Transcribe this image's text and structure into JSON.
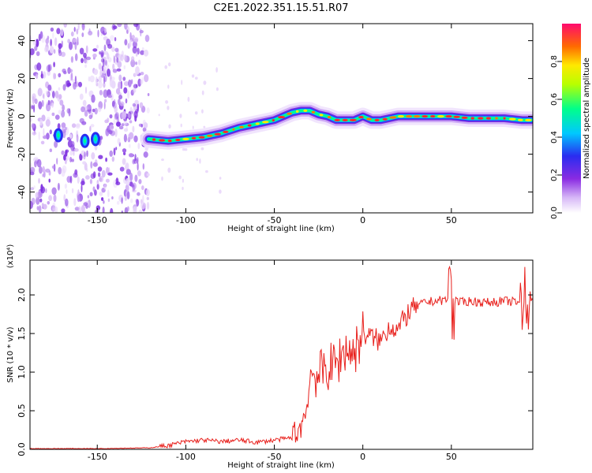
{
  "title": "C2E1.2022.351.15.51.R07",
  "colors": {
    "snr_line": "#e8201c",
    "spectral": [
      "#f6eefe",
      "#c79af5",
      "#8a2be2",
      "#2a2cf0",
      "#00c8ff",
      "#00ff8a",
      "#ffe800",
      "#ff6a00",
      "#ff0033"
    ]
  },
  "chart_data": [
    {
      "type": "heatmap",
      "xlabel": "Height of straight line (km)",
      "ylabel": "Frequency (Hz)",
      "xlim": [
        -188,
        96
      ],
      "ylim": [
        -51,
        49
      ],
      "x_ticks": [
        -150,
        -100,
        -50,
        0,
        50
      ],
      "y_ticks": [
        -40,
        -20,
        0,
        20,
        40
      ],
      "colorbar": {
        "label": "Normalized spectral amplitude",
        "range": [
          0,
          1
        ],
        "ticks": [
          "0.0",
          "0.2",
          "0.4",
          "0.6",
          "0.8"
        ]
      },
      "ridge": {
        "x": [
          -121,
          -110,
          -100,
          -90,
          -80,
          -70,
          -60,
          -50,
          -45,
          -40,
          -35,
          -30,
          -25,
          -20,
          -15,
          -10,
          -5,
          0,
          5,
          10,
          20,
          30,
          40,
          50,
          60,
          70,
          80,
          90,
          95
        ],
        "freq": [
          -12,
          -13,
          -12,
          -11,
          -9,
          -6,
          -4,
          -2,
          0,
          2,
          3,
          3,
          1,
          0,
          -2,
          -2,
          -2,
          0,
          -2,
          -2,
          0,
          0,
          0,
          0,
          -1,
          -1,
          -1,
          -2,
          -2
        ]
      },
      "noise_band": {
        "x_range": [
          -188,
          -121
        ],
        "freq_range": [
          -51,
          49
        ]
      },
      "early_blobs": [
        {
          "x": -172,
          "freq": -10
        },
        {
          "x": -157,
          "freq": -13
        },
        {
          "x": -151,
          "freq": -12
        }
      ]
    },
    {
      "type": "line",
      "xlabel": "Height of straight line (km)",
      "ylabel": "SNR (10 * v/v)",
      "y_multiplier": "(x10⁴)",
      "xlim": [
        -188,
        96
      ],
      "ylim": [
        0,
        2.45
      ],
      "x_ticks": [
        -150,
        -100,
        -50,
        0,
        50
      ],
      "y_ticks": [
        "0.0",
        "0.5",
        "1.0",
        "1.5",
        "2.0"
      ],
      "series": [
        {
          "x": [
            -188,
            -150,
            -120,
            -110,
            -100,
            -90,
            -80,
            -70,
            -60,
            -50,
            -40,
            -35,
            -32,
            -30,
            -28,
            -25,
            -20,
            -15,
            -10,
            -5,
            0,
            5,
            10,
            15,
            20,
            25,
            30,
            35,
            40,
            45,
            50,
            55,
            60,
            70,
            80,
            90,
            96
          ],
          "y": [
            0.01,
            0.01,
            0.02,
            0.05,
            0.1,
            0.12,
            0.1,
            0.12,
            0.09,
            0.12,
            0.15,
            0.3,
            0.5,
            0.9,
            1.0,
            0.95,
            1.05,
            1.1,
            1.3,
            1.25,
            1.5,
            1.45,
            1.4,
            1.6,
            1.55,
            1.75,
            1.85,
            1.9,
            1.92,
            1.93,
            1.95,
            1.9,
            1.92,
            1.9,
            1.92,
            1.9,
            1.9
          ]
        }
      ]
    }
  ]
}
